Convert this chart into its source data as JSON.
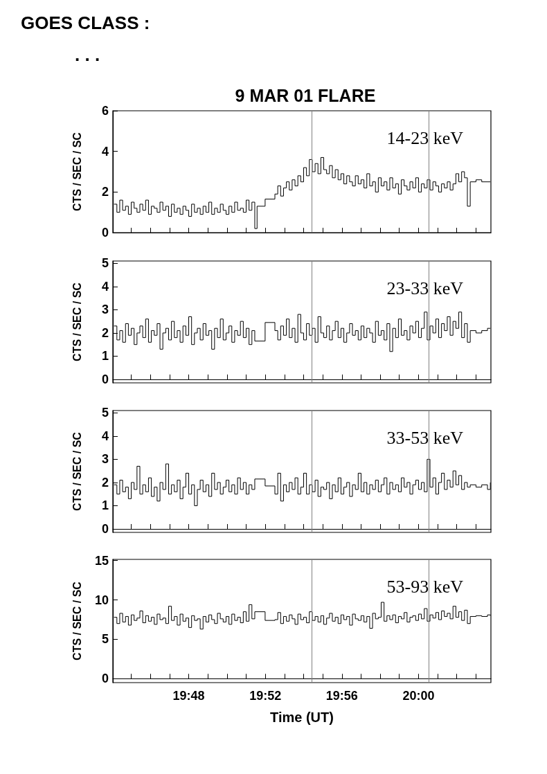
{
  "chart_data": [
    {
      "type": "step",
      "title": "9 MAR 01 FLARE",
      "ylabel": "CTS / SEC / SC",
      "annotations": [
        "GOES CLASS :",
        ". . .",
        "14-23 keV"
      ],
      "tick_labels": "y",
      "xlim": [
        19.734,
        20.063
      ],
      "xticks": [
        {
          "value": 19.75,
          "label": null
        },
        {
          "value": 19.7667,
          "label": null
        },
        {
          "value": 19.7833,
          "label": null
        },
        {
          "value": 19.8,
          "label": null
        },
        {
          "value": 19.8167,
          "label": null
        },
        {
          "value": 19.8333,
          "label": null
        },
        {
          "value": 19.85,
          "label": null
        },
        {
          "value": 19.8667,
          "label": null
        },
        {
          "value": 19.8833,
          "label": null
        },
        {
          "value": 19.9,
          "label": null
        },
        {
          "value": 19.9167,
          "label": null
        },
        {
          "value": 19.9333,
          "label": null
        },
        {
          "value": 19.95,
          "label": null
        },
        {
          "value": 19.9667,
          "label": null
        },
        {
          "value": 19.9833,
          "label": null
        },
        {
          "value": 20.0,
          "label": null
        },
        {
          "value": 20.0167,
          "label": null
        },
        {
          "value": 20.0333,
          "label": null
        },
        {
          "value": 20.05,
          "label": null
        }
      ],
      "ylim": [
        0,
        6
      ],
      "yticks": [
        0,
        2,
        4,
        6
      ],
      "ref_lines": [
        {
          "axis": "x",
          "value": 19.9068,
          "color": "#808080"
        },
        {
          "axis": "x",
          "value": 20.0092,
          "color": "#808080"
        }
      ],
      "x": [
        19.735,
        19.7375,
        19.74,
        19.7425,
        19.745,
        19.7475,
        19.75,
        19.7525,
        19.755,
        19.7575,
        19.76,
        19.7625,
        19.765,
        19.7675,
        19.77,
        19.7725,
        19.775,
        19.7775,
        19.78,
        19.7825,
        19.785,
        19.7875,
        19.79,
        19.7925,
        19.795,
        19.7975,
        19.8,
        19.8025,
        19.805,
        19.8075,
        19.81,
        19.8125,
        19.815,
        19.8175,
        19.82,
        19.8225,
        19.825,
        19.8275,
        19.83,
        19.8325,
        19.835,
        19.8375,
        19.84,
        19.8425,
        19.845,
        19.8475,
        19.85,
        19.8525,
        19.855,
        19.8575,
        19.8595,
        19.8665,
        19.875,
        19.8775,
        19.88,
        19.8825,
        19.885,
        19.8875,
        19.89,
        19.8925,
        19.895,
        19.8975,
        19.9,
        19.9025,
        19.905,
        19.9075,
        19.91,
        19.9125,
        19.915,
        19.9175,
        19.92,
        19.9225,
        19.925,
        19.9275,
        19.93,
        19.9325,
        19.935,
        19.9375,
        19.94,
        19.9425,
        19.945,
        19.9475,
        19.95,
        19.9525,
        19.955,
        19.9575,
        19.96,
        19.9625,
        19.965,
        19.9675,
        19.97,
        19.9725,
        19.975,
        19.9775,
        19.98,
        19.9825,
        19.985,
        19.9875,
        19.99,
        19.9925,
        19.995,
        19.9975,
        20.0,
        20.0025,
        20.005,
        20.0075,
        20.01,
        20.0125,
        20.015,
        20.0175,
        20.02,
        20.0225,
        20.025,
        20.0275,
        20.03,
        20.0325,
        20.035,
        20.0375,
        20.04,
        20.0425,
        20.045,
        20.05,
        20.055,
        20.06,
        20.0625
      ],
      "series": [
        {
          "color": "#000000",
          "values": [
            1.4,
            1.0,
            1.6,
            1.1,
            1.3,
            0.9,
            1.5,
            1.2,
            1.0,
            1.4,
            1.1,
            1.6,
            0.9,
            1.3,
            1.2,
            1.0,
            1.5,
            1.1,
            1.3,
            0.8,
            1.4,
            1.0,
            1.2,
            0.9,
            1.3,
            1.1,
            0.8,
            1.4,
            1.0,
            1.2,
            0.9,
            1.3,
            1.0,
            1.5,
            0.9,
            1.2,
            1.0,
            1.4,
            1.1,
            0.9,
            1.3,
            1.0,
            1.5,
            1.1,
            1.2,
            1.0,
            1.6,
            1.1,
            1.5,
            0.2,
            1.3,
            1.65,
            1.9,
            2.3,
            1.8,
            2.2,
            2.5,
            2.1,
            2.6,
            2.3,
            2.8,
            2.5,
            3.2,
            2.8,
            3.6,
            3.0,
            3.4,
            2.9,
            3.7,
            3.1,
            2.9,
            3.3,
            2.7,
            3.1,
            2.6,
            2.9,
            2.4,
            2.8,
            2.5,
            2.3,
            2.8,
            2.4,
            2.6,
            2.2,
            2.9,
            2.3,
            2.5,
            2.0,
            2.7,
            2.3,
            2.5,
            2.1,
            2.7,
            2.2,
            2.4,
            1.9,
            2.6,
            2.3,
            2.1,
            2.5,
            2.2,
            2.7,
            2.0,
            2.4,
            2.2,
            2.6,
            2.1,
            2.5,
            2.3,
            2.0,
            2.4,
            2.2,
            2.5,
            2.1,
            2.4,
            2.9,
            2.5,
            3.0,
            2.7,
            1.3,
            2.5,
            2.6,
            2.5,
            2.5,
            2.5
          ]
        }
      ]
    },
    {
      "type": "step",
      "ylabel": "CTS / SEC / SC",
      "annotations": [
        "23-33 keV"
      ],
      "tick_labels": "y",
      "xlim": [
        19.734,
        20.063
      ],
      "xticks": [
        {
          "value": 19.75,
          "label": null
        },
        {
          "value": 19.7667,
          "label": null
        },
        {
          "value": 19.7833,
          "label": null
        },
        {
          "value": 19.8,
          "label": null
        },
        {
          "value": 19.8167,
          "label": null
        },
        {
          "value": 19.8333,
          "label": null
        },
        {
          "value": 19.85,
          "label": null
        },
        {
          "value": 19.8667,
          "label": null
        },
        {
          "value": 19.8833,
          "label": null
        },
        {
          "value": 19.9,
          "label": null
        },
        {
          "value": 19.9167,
          "label": null
        },
        {
          "value": 19.9333,
          "label": null
        },
        {
          "value": 19.95,
          "label": null
        },
        {
          "value": 19.9667,
          "label": null
        },
        {
          "value": 19.9833,
          "label": null
        },
        {
          "value": 20.0,
          "label": null
        },
        {
          "value": 20.0167,
          "label": null
        },
        {
          "value": 20.0333,
          "label": null
        },
        {
          "value": 20.05,
          "label": null
        }
      ],
      "ylim": [
        -0.15,
        5.1
      ],
      "yticks": [
        0,
        1,
        2,
        3,
        4,
        5
      ],
      "ref_lines": [
        {
          "axis": "x",
          "value": 19.9068,
          "color": "#808080"
        },
        {
          "axis": "x",
          "value": 20.0092,
          "color": "#808080"
        }
      ],
      "x": [
        19.735,
        19.7375,
        19.74,
        19.7425,
        19.745,
        19.7475,
        19.75,
        19.7525,
        19.755,
        19.7575,
        19.76,
        19.7625,
        19.765,
        19.7675,
        19.77,
        19.7725,
        19.775,
        19.7775,
        19.78,
        19.7825,
        19.785,
        19.7875,
        19.79,
        19.7925,
        19.795,
        19.7975,
        19.8,
        19.8025,
        19.805,
        19.8075,
        19.81,
        19.8125,
        19.815,
        19.8175,
        19.82,
        19.8225,
        19.825,
        19.8275,
        19.83,
        19.8325,
        19.835,
        19.8375,
        19.84,
        19.8425,
        19.845,
        19.8475,
        19.85,
        19.8525,
        19.855,
        19.8575,
        19.8665,
        19.875,
        19.8775,
        19.88,
        19.8825,
        19.885,
        19.8875,
        19.89,
        19.8925,
        19.895,
        19.8975,
        19.9,
        19.9025,
        19.905,
        19.9075,
        19.91,
        19.9125,
        19.915,
        19.9175,
        19.92,
        19.9225,
        19.925,
        19.9275,
        19.93,
        19.9325,
        19.935,
        19.9375,
        19.94,
        19.9425,
        19.945,
        19.9475,
        19.95,
        19.9525,
        19.955,
        19.9575,
        19.96,
        19.9625,
        19.965,
        19.9675,
        19.97,
        19.9725,
        19.975,
        19.9775,
        19.98,
        19.9825,
        19.985,
        19.9875,
        19.99,
        19.9925,
        19.995,
        19.9975,
        20.0,
        20.0025,
        20.005,
        20.0075,
        20.01,
        20.0125,
        20.015,
        20.0175,
        20.02,
        20.0225,
        20.025,
        20.0275,
        20.03,
        20.0325,
        20.035,
        20.0375,
        20.04,
        20.0425,
        20.045,
        20.05,
        20.055,
        20.06,
        20.0625
      ],
      "series": [
        {
          "color": "#000000",
          "values": [
            2.3,
            1.7,
            2.1,
            1.6,
            2.4,
            1.9,
            2.2,
            1.5,
            2.0,
            2.3,
            1.8,
            2.6,
            1.6,
            2.1,
            1.9,
            2.4,
            1.3,
            2.0,
            2.2,
            1.7,
            2.5,
            1.8,
            2.1,
            1.6,
            2.3,
            1.9,
            2.7,
            1.5,
            2.0,
            2.2,
            1.7,
            2.4,
            1.9,
            2.1,
            1.3,
            2.2,
            1.8,
            2.6,
            1.7,
            2.0,
            2.3,
            1.6,
            2.1,
            1.9,
            2.5,
            1.8,
            2.2,
            1.5,
            2.1,
            1.65,
            2.45,
            2.1,
            1.7,
            2.3,
            1.9,
            2.6,
            1.8,
            2.2,
            1.6,
            2.8,
            2.0,
            1.7,
            2.4,
            1.9,
            2.2,
            1.6,
            2.7,
            2.0,
            1.8,
            2.3,
            1.7,
            2.1,
            2.5,
            1.8,
            2.2,
            1.6,
            2.0,
            2.4,
            1.9,
            2.1,
            1.7,
            2.3,
            1.8,
            2.2,
            2.0,
            1.6,
            2.5,
            1.9,
            2.1,
            1.7,
            2.4,
            1.2,
            2.2,
            1.8,
            2.6,
            1.9,
            2.1,
            1.7,
            2.3,
            2.0,
            2.5,
            1.8,
            2.2,
            2.9,
            1.7,
            2.3,
            2.0,
            2.6,
            1.8,
            2.4,
            2.1,
            2.7,
            1.9,
            2.5,
            2.2,
            2.9,
            1.8,
            2.4,
            1.6,
            2.1,
            2.0,
            2.1,
            2.2,
            2.2
          ]
        }
      ]
    },
    {
      "type": "step",
      "ylabel": "CTS / SEC / SC",
      "annotations": [
        "33-53 keV"
      ],
      "tick_labels": "y",
      "xlim": [
        19.734,
        20.063
      ],
      "xticks": [
        {
          "value": 19.75,
          "label": null
        },
        {
          "value": 19.7667,
          "label": null
        },
        {
          "value": 19.7833,
          "label": null
        },
        {
          "value": 19.8,
          "label": null
        },
        {
          "value": 19.8167,
          "label": null
        },
        {
          "value": 19.8333,
          "label": null
        },
        {
          "value": 19.85,
          "label": null
        },
        {
          "value": 19.8667,
          "label": null
        },
        {
          "value": 19.8833,
          "label": null
        },
        {
          "value": 19.9,
          "label": null
        },
        {
          "value": 19.9167,
          "label": null
        },
        {
          "value": 19.9333,
          "label": null
        },
        {
          "value": 19.95,
          "label": null
        },
        {
          "value": 19.9667,
          "label": null
        },
        {
          "value": 19.9833,
          "label": null
        },
        {
          "value": 20.0,
          "label": null
        },
        {
          "value": 20.0167,
          "label": null
        },
        {
          "value": 20.0333,
          "label": null
        },
        {
          "value": 20.05,
          "label": null
        }
      ],
      "ylim": [
        -0.15,
        5.1
      ],
      "yticks": [
        0,
        1,
        2,
        3,
        4,
        5
      ],
      "ref_lines": [
        {
          "axis": "x",
          "value": 19.9068,
          "color": "#808080"
        },
        {
          "axis": "x",
          "value": 20.0092,
          "color": "#808080"
        }
      ],
      "x": [
        19.735,
        19.7375,
        19.74,
        19.7425,
        19.745,
        19.7475,
        19.75,
        19.7525,
        19.755,
        19.7575,
        19.76,
        19.7625,
        19.765,
        19.7675,
        19.77,
        19.7725,
        19.775,
        19.7775,
        19.78,
        19.7825,
        19.785,
        19.7875,
        19.79,
        19.7925,
        19.795,
        19.7975,
        19.8,
        19.8025,
        19.805,
        19.8075,
        19.81,
        19.8125,
        19.815,
        19.8175,
        19.82,
        19.8225,
        19.825,
        19.8275,
        19.83,
        19.8325,
        19.835,
        19.8375,
        19.84,
        19.8425,
        19.845,
        19.8475,
        19.85,
        19.8525,
        19.855,
        19.8575,
        19.8665,
        19.875,
        19.8775,
        19.88,
        19.8825,
        19.885,
        19.8875,
        19.89,
        19.8925,
        19.895,
        19.8975,
        19.9,
        19.9025,
        19.905,
        19.9075,
        19.91,
        19.9125,
        19.915,
        19.9175,
        19.92,
        19.9225,
        19.925,
        19.9275,
        19.93,
        19.9325,
        19.935,
        19.9375,
        19.94,
        19.9425,
        19.945,
        19.9475,
        19.95,
        19.9525,
        19.955,
        19.9575,
        19.96,
        19.9625,
        19.965,
        19.9675,
        19.97,
        19.9725,
        19.975,
        19.9775,
        19.98,
        19.9825,
        19.985,
        19.9875,
        19.99,
        19.9925,
        19.995,
        19.9975,
        20.0,
        20.0025,
        20.005,
        20.0075,
        20.01,
        20.0125,
        20.015,
        20.0175,
        20.02,
        20.0225,
        20.025,
        20.0275,
        20.03,
        20.0325,
        20.035,
        20.0375,
        20.04,
        20.0425,
        20.045,
        20.05,
        20.055,
        20.06,
        20.0625
      ],
      "series": [
        {
          "color": "#000000",
          "values": [
            1.9,
            1.5,
            2.1,
            1.6,
            1.8,
            1.3,
            2.0,
            1.7,
            2.7,
            1.5,
            1.9,
            1.6,
            2.2,
            1.4,
            1.8,
            1.2,
            2.0,
            1.7,
            2.8,
            1.5,
            1.9,
            1.6,
            2.1,
            1.3,
            1.8,
            2.4,
            1.5,
            1.9,
            1.0,
            1.7,
            2.1,
            1.6,
            1.9,
            1.4,
            2.4,
            1.7,
            2.0,
            1.5,
            1.8,
            2.1,
            1.6,
            1.9,
            1.5,
            2.2,
            1.7,
            2.0,
            1.5,
            1.9,
            1.7,
            2.15,
            1.85,
            1.5,
            2.4,
            1.2,
            1.9,
            1.6,
            2.0,
            1.7,
            2.2,
            1.5,
            1.8,
            2.4,
            1.5,
            1.9,
            1.6,
            2.1,
            1.4,
            1.8,
            1.7,
            2.0,
            1.3,
            1.9,
            1.6,
            2.2,
            1.5,
            1.8,
            2.0,
            1.4,
            1.9,
            1.7,
            2.4,
            1.6,
            2.0,
            1.5,
            1.9,
            1.7,
            2.1,
            1.6,
            1.9,
            2.2,
            1.5,
            2.0,
            1.7,
            1.9,
            1.6,
            2.2,
            1.8,
            2.0,
            1.5,
            1.9,
            2.1,
            1.7,
            2.0,
            1.6,
            3.0,
            1.8,
            2.2,
            1.5,
            2.0,
            2.4,
            1.7,
            2.1,
            1.8,
            2.5,
            1.9,
            2.3,
            1.7,
            2.0,
            1.8,
            1.9,
            1.8,
            1.9,
            1.7,
            2.0
          ]
        }
      ]
    },
    {
      "type": "step",
      "ylabel": "CTS / SEC / SC",
      "xlabel": "Time (UT)",
      "annotations": [
        "53-93 keV"
      ],
      "xlim": [
        19.734,
        20.063
      ],
      "xticks": [
        {
          "value": 19.75,
          "label": null
        },
        {
          "value": 19.7667,
          "label": null
        },
        {
          "value": 19.7833,
          "label": null
        },
        {
          "value": 19.8,
          "label": "19:48"
        },
        {
          "value": 19.8167,
          "label": null
        },
        {
          "value": 19.8333,
          "label": null
        },
        {
          "value": 19.85,
          "label": null
        },
        {
          "value": 19.8667,
          "label": "19:52"
        },
        {
          "value": 19.8833,
          "label": null
        },
        {
          "value": 19.9,
          "label": null
        },
        {
          "value": 19.9167,
          "label": null
        },
        {
          "value": 19.9333,
          "label": "19:56"
        },
        {
          "value": 19.95,
          "label": null
        },
        {
          "value": 19.9667,
          "label": null
        },
        {
          "value": 19.9833,
          "label": null
        },
        {
          "value": 20.0,
          "label": "20:00"
        },
        {
          "value": 20.0167,
          "label": null
        },
        {
          "value": 20.0333,
          "label": null
        },
        {
          "value": 20.05,
          "label": null
        }
      ],
      "ylim": [
        -0.5,
        15.15
      ],
      "yticks": [
        0,
        5,
        10,
        15
      ],
      "ref_lines": [
        {
          "axis": "x",
          "value": 19.9068,
          "color": "#808080"
        },
        {
          "axis": "x",
          "value": 20.0092,
          "color": "#808080"
        }
      ],
      "x": [
        19.735,
        19.7375,
        19.74,
        19.7425,
        19.745,
        19.7475,
        19.75,
        19.7525,
        19.755,
        19.7575,
        19.76,
        19.7625,
        19.765,
        19.7675,
        19.77,
        19.7725,
        19.775,
        19.7775,
        19.78,
        19.7825,
        19.785,
        19.7875,
        19.79,
        19.7925,
        19.795,
        19.7975,
        19.8,
        19.8025,
        19.805,
        19.8075,
        19.81,
        19.8125,
        19.815,
        19.8175,
        19.82,
        19.8225,
        19.825,
        19.8275,
        19.83,
        19.8325,
        19.835,
        19.8375,
        19.84,
        19.8425,
        19.845,
        19.8475,
        19.85,
        19.8525,
        19.855,
        19.8575,
        19.8665,
        19.875,
        19.8775,
        19.88,
        19.8825,
        19.885,
        19.8875,
        19.89,
        19.8925,
        19.895,
        19.8975,
        19.9,
        19.9025,
        19.905,
        19.9075,
        19.91,
        19.9125,
        19.915,
        19.9175,
        19.92,
        19.9225,
        19.925,
        19.9275,
        19.93,
        19.9325,
        19.935,
        19.9375,
        19.94,
        19.9425,
        19.945,
        19.9475,
        19.95,
        19.9525,
        19.955,
        19.9575,
        19.96,
        19.9625,
        19.965,
        19.9675,
        19.97,
        19.9725,
        19.975,
        19.9775,
        19.98,
        19.9825,
        19.985,
        19.9875,
        19.99,
        19.9925,
        19.995,
        19.9975,
        20.0,
        20.0025,
        20.005,
        20.0075,
        20.01,
        20.0125,
        20.015,
        20.0175,
        20.02,
        20.0225,
        20.025,
        20.0275,
        20.03,
        20.0325,
        20.035,
        20.0375,
        20.04,
        20.0425,
        20.045,
        20.05,
        20.055,
        20.06,
        20.0625
      ],
      "series": [
        {
          "color": "#000000",
          "values": [
            7.8,
            7.0,
            8.3,
            7.2,
            7.9,
            6.8,
            8.1,
            7.4,
            7.7,
            8.6,
            7.1,
            8.0,
            7.3,
            7.8,
            6.9,
            8.2,
            7.5,
            7.7,
            7.0,
            9.2,
            7.4,
            7.9,
            6.8,
            8.2,
            7.3,
            7.7,
            6.5,
            8.0,
            7.4,
            7.6,
            6.3,
            7.9,
            7.2,
            8.1,
            7.5,
            7.0,
            8.3,
            7.6,
            7.2,
            7.9,
            6.9,
            8.2,
            7.4,
            7.8,
            7.1,
            8.5,
            7.3,
            9.4,
            7.6,
            8.5,
            7.4,
            7.5,
            8.4,
            7.0,
            7.9,
            7.3,
            8.1,
            7.6,
            6.9,
            8.2,
            7.5,
            7.8,
            7.1,
            8.5,
            7.4,
            7.9,
            7.2,
            8.0,
            6.9,
            7.7,
            8.3,
            7.3,
            7.8,
            7.0,
            8.1,
            7.5,
            7.9,
            6.8,
            8.2,
            7.6,
            7.4,
            8.0,
            7.2,
            7.9,
            6.4,
            8.3,
            7.6,
            7.8,
            9.7,
            7.3,
            8.0,
            7.5,
            8.1,
            7.1,
            7.9,
            7.6,
            8.4,
            7.2,
            7.8,
            8.0,
            7.4,
            8.2,
            7.6,
            8.9,
            7.3,
            8.1,
            7.7,
            8.4,
            7.5,
            8.6,
            7.9,
            8.3,
            7.6,
            9.2,
            7.8,
            8.5,
            7.4,
            8.7,
            7.0,
            7.9,
            8.0,
            7.9,
            8.1,
            8.0
          ]
        }
      ]
    }
  ]
}
